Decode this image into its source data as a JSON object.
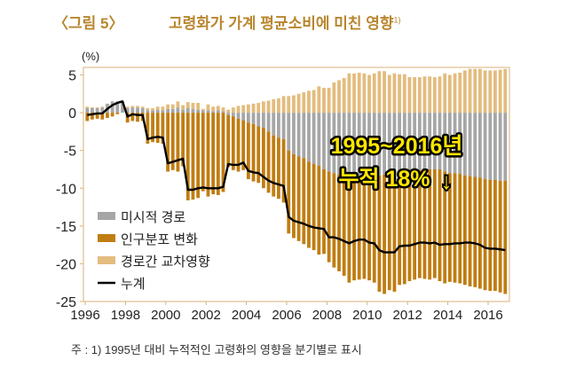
{
  "figure_label": "〈그림 5〉",
  "title": "고령화가 가계 평균소비에 미친 영향",
  "title_note": "1)",
  "footnote": "주 : 1) 1995년 대비 누적적인 고령화의 영향을 분기별로 표시",
  "chart_data": {
    "type": "bar",
    "stacked": true,
    "frequency": "quarterly",
    "x_start": "1996Q1",
    "x_end": "2016Q4",
    "ylabel": "(%)",
    "ylim": [
      -25,
      6
    ],
    "yticks": [
      5,
      0,
      -5,
      -10,
      -15,
      -20,
      -25
    ],
    "xticks": [
      "1996",
      "1998",
      "2000",
      "2002",
      "2004",
      "2006",
      "2008",
      "2010",
      "2012",
      "2014",
      "2016"
    ],
    "grid": false,
    "legend_position": "left-bottom",
    "annotation": {
      "line1": "1995~2016년",
      "line2": "누적 18%",
      "arrow": "↓",
      "color": "#ffe600"
    },
    "series": [
      {
        "name": "미시적 경로",
        "color": "#a6a6a6",
        "kind": "bar",
        "values": [
          0.6,
          0.6,
          0.6,
          0.7,
          1.2,
          1.5,
          1.5,
          1.5,
          0.6,
          0.7,
          0.7,
          0.6,
          0.3,
          0.3,
          0.4,
          0.3,
          0.5,
          0.5,
          0.7,
          0.4,
          0.6,
          0.5,
          0.4,
          0.3,
          0.3,
          0.2,
          0.3,
          0.2,
          -0.3,
          -0.5,
          -0.8,
          -1.0,
          -1.3,
          -1.5,
          -1.8,
          -2.0,
          -2.5,
          -3.0,
          -3.3,
          -3.5,
          -5.0,
          -5.5,
          -5.8,
          -6.0,
          -6.5,
          -6.8,
          -7.0,
          -7.5,
          -7.8,
          -8.0,
          -8.2,
          -8.5,
          -8.8,
          -8.8,
          -8.5,
          -8.5,
          -8.5,
          -8.4,
          -8.3,
          -8.2,
          -8.0,
          -8.0,
          -7.9,
          -7.8,
          -7.7,
          -7.6,
          -7.6,
          -7.5,
          -7.5,
          -7.5,
          -7.5,
          -7.8,
          -8.0,
          -8.0,
          -8.1,
          -8.3,
          -8.4,
          -8.5,
          -8.6,
          -8.8,
          -8.9,
          -8.9,
          -9.0,
          -9.0
        ]
      },
      {
        "name": "인구분포 변화",
        "color": "#c07d12",
        "kind": "bar",
        "values": [
          -1.1,
          -0.9,
          -0.8,
          -0.9,
          -0.7,
          -0.5,
          -0.2,
          0,
          -1.3,
          -1.1,
          -1.2,
          -1.1,
          -4.1,
          -3.9,
          -4.0,
          -4.1,
          -7.8,
          -7.6,
          -7.8,
          -7.1,
          -11.6,
          -11.5,
          -11.3,
          -10.4,
          -11.1,
          -10.8,
          -10.9,
          -10.5,
          -6.9,
          -7.1,
          -7.0,
          -6.6,
          -7.5,
          -7.6,
          -7.5,
          -8.0,
          -8.1,
          -8.1,
          -8.1,
          -8.4,
          -11.0,
          -11.1,
          -11.2,
          -11.4,
          -11.4,
          -11.4,
          -11.8,
          -11.2,
          -12.0,
          -12.5,
          -12.8,
          -13.1,
          -13.7,
          -13.4,
          -13.6,
          -13.5,
          -13.7,
          -14.1,
          -15.4,
          -15.8,
          -15.5,
          -15.7,
          -14.9,
          -14.9,
          -14.6,
          -14.5,
          -14.3,
          -14.5,
          -14.6,
          -14.4,
          -14.8,
          -14.8,
          -14.4,
          -14.5,
          -14.5,
          -14.5,
          -14.6,
          -14.6,
          -14.7,
          -14.7,
          -14.7,
          -14.7,
          -14.8,
          -15.0
        ]
      },
      {
        "name": "경로간 교차영향",
        "color": "#e3bc7e",
        "kind": "bar",
        "values": [
          0.2,
          0.1,
          0.1,
          0.1,
          0,
          0,
          0,
          0,
          0.2,
          0.2,
          0.2,
          0.2,
          0.3,
          0.3,
          0.4,
          0.5,
          0.6,
          0.6,
          0.8,
          0.6,
          0.8,
          0.8,
          0.9,
          0.2,
          0.8,
          0.6,
          0.6,
          0.5,
          0.4,
          0.7,
          0.9,
          1.0,
          1.1,
          1.2,
          1.3,
          1.5,
          1.6,
          1.8,
          1.9,
          2.2,
          2.2,
          2.3,
          2.5,
          2.7,
          2.9,
          3.0,
          3.5,
          3.3,
          3.3,
          4.0,
          4.3,
          4.6,
          5.2,
          5.2,
          5.3,
          5.2,
          5.0,
          5.2,
          5.5,
          5.5,
          5.0,
          5.2,
          5.1,
          5.1,
          4.7,
          4.7,
          4.7,
          4.8,
          4.8,
          4.7,
          4.8,
          5.2,
          5.0,
          5.2,
          5.3,
          5.6,
          5.8,
          5.8,
          5.8,
          5.6,
          5.6,
          5.6,
          5.7,
          5.8
        ]
      },
      {
        "name": "누계",
        "color": "#000000",
        "kind": "line",
        "values": [
          -0.3,
          -0.2,
          -0.1,
          -0.1,
          0.5,
          1.0,
          1.3,
          1.5,
          -0.5,
          -0.2,
          -0.3,
          -0.3,
          -3.5,
          -3.3,
          -3.2,
          -3.3,
          -6.7,
          -6.5,
          -6.3,
          -6.1,
          -10.2,
          -10.2,
          -10.0,
          -9.9,
          -10.0,
          -10.0,
          -10.0,
          -9.8,
          -6.8,
          -6.9,
          -6.9,
          -6.6,
          -7.7,
          -7.9,
          -8.0,
          -8.5,
          -9.0,
          -9.3,
          -9.5,
          -9.7,
          -13.8,
          -14.3,
          -14.5,
          -14.7,
          -15.0,
          -15.2,
          -15.3,
          -15.4,
          -16.5,
          -16.5,
          -16.7,
          -17.0,
          -17.3,
          -17.0,
          -16.8,
          -16.8,
          -17.2,
          -17.3,
          -18.2,
          -18.5,
          -18.5,
          -18.5,
          -17.7,
          -17.6,
          -17.6,
          -17.4,
          -17.2,
          -17.2,
          -17.3,
          -17.2,
          -17.5,
          -17.4,
          -17.4,
          -17.3,
          -17.3,
          -17.2,
          -17.2,
          -17.3,
          -17.5,
          -17.9,
          -18.0,
          -18.0,
          -18.1,
          -18.2
        ]
      }
    ]
  }
}
